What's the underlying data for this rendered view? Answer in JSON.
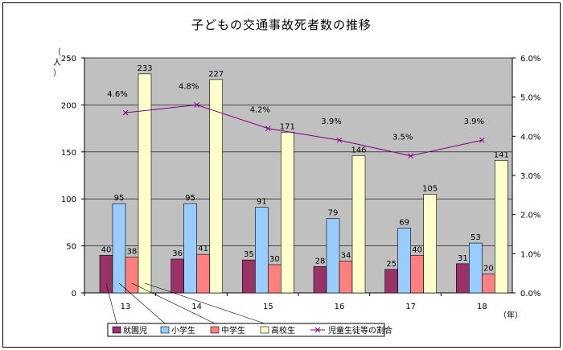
{
  "chart_data": {
    "type": "bar+line",
    "title": "子どもの交通事故死者数の推移",
    "y_left_label": "（人）",
    "x_unit_label": "（年）",
    "categories": [
      "13",
      "14",
      "15",
      "16",
      "17",
      "18"
    ],
    "y_left": {
      "min": 0,
      "max": 250,
      "ticks": [
        "0",
        "50",
        "100",
        "150",
        "200",
        "250"
      ]
    },
    "y_right": {
      "min": 0,
      "max": 6,
      "ticks": [
        "0.0%",
        "1.0%",
        "2.0%",
        "3.0%",
        "4.0%",
        "5.0%",
        "6.0%"
      ]
    },
    "series": [
      {
        "name": "就園児",
        "type": "bar",
        "color": "#993366",
        "values": [
          40,
          36,
          35,
          28,
          25,
          31
        ]
      },
      {
        "name": "小学生",
        "type": "bar",
        "color": "#99ccff",
        "values": [
          95,
          95,
          91,
          79,
          69,
          53
        ]
      },
      {
        "name": "中学生",
        "type": "bar",
        "color": "#ff8080",
        "values": [
          38,
          41,
          30,
          34,
          40,
          20
        ]
      },
      {
        "name": "高校生",
        "type": "bar",
        "color": "#ffffcc",
        "values": [
          233,
          227,
          171,
          146,
          105,
          141
        ]
      },
      {
        "name": "児童生徒等の割合",
        "type": "line",
        "axis": "right",
        "color": "#800080",
        "values": [
          4.6,
          4.8,
          4.2,
          3.9,
          3.5,
          3.9
        ],
        "labels": [
          "4.6%",
          "4.8%",
          "4.2%",
          "3.9%",
          "3.5%",
          "3.9%"
        ]
      }
    ],
    "plot_background": "#c0c0c0",
    "grid": "horizontal",
    "legend_position": "bottom"
  }
}
